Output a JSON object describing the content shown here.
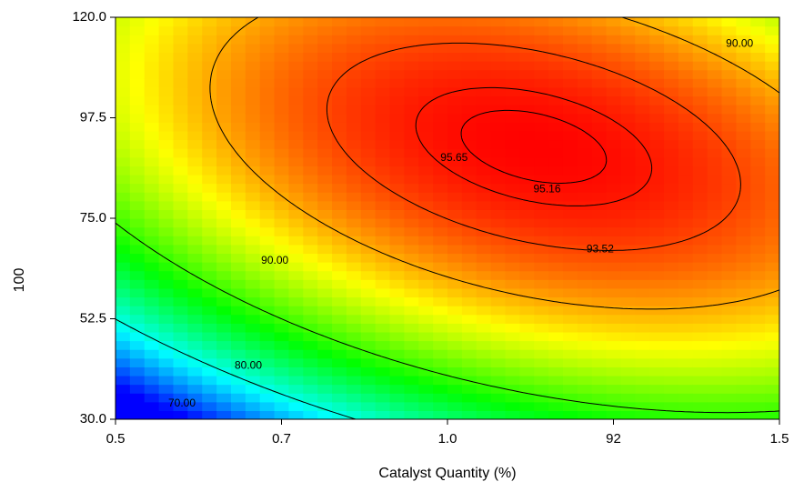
{
  "chart_data": {
    "type": "heatmap",
    "title": "",
    "xlabel": "Catalyst Quantity (%)",
    "ylabel": "100",
    "x_tick_labels": [
      "0.5",
      "0.7",
      "1.0",
      "92",
      "1.5"
    ],
    "y_tick_labels": [
      "120.0",
      "97.5",
      "75.0",
      "52.5",
      "30.0"
    ],
    "xlim": [
      0.5,
      1.5
    ],
    "ylim": [
      30.0,
      120.0
    ],
    "colormap": [
      "#0000ff",
      "#00ffff",
      "#00ff00",
      "#ffff00",
      "#ff0000"
    ],
    "color_range": [
      60,
      96
    ],
    "grid_cells": 46,
    "grid": false,
    "contour_levels": [
      {
        "value": 70.0,
        "label": "70.00"
      },
      {
        "value": 80.0,
        "label": "80.00"
      },
      {
        "value": 90.0,
        "label": "90.00"
      },
      {
        "value": 93.52,
        "label": "93.52"
      },
      {
        "value": 95.16,
        "label": "95.16"
      },
      {
        "value": 95.65,
        "label": "95.65"
      }
    ],
    "contour_labels": [
      {
        "text": "70.00",
        "x": 0.6,
        "y": 33.5
      },
      {
        "text": "80.00",
        "x": 0.7,
        "y": 42.0
      },
      {
        "text": "90.00",
        "x": 0.74,
        "y": 65.5
      },
      {
        "text": "90.00",
        "x": 1.44,
        "y": 114.0
      },
      {
        "text": "93.52",
        "x": 1.23,
        "y": 68.0
      },
      {
        "text": "95.16",
        "x": 1.15,
        "y": 81.5
      },
      {
        "text": "95.65",
        "x": 1.01,
        "y": 88.5
      }
    ],
    "optimum": {
      "x": 1.13,
      "y": 91.0,
      "value": 95.95
    }
  }
}
